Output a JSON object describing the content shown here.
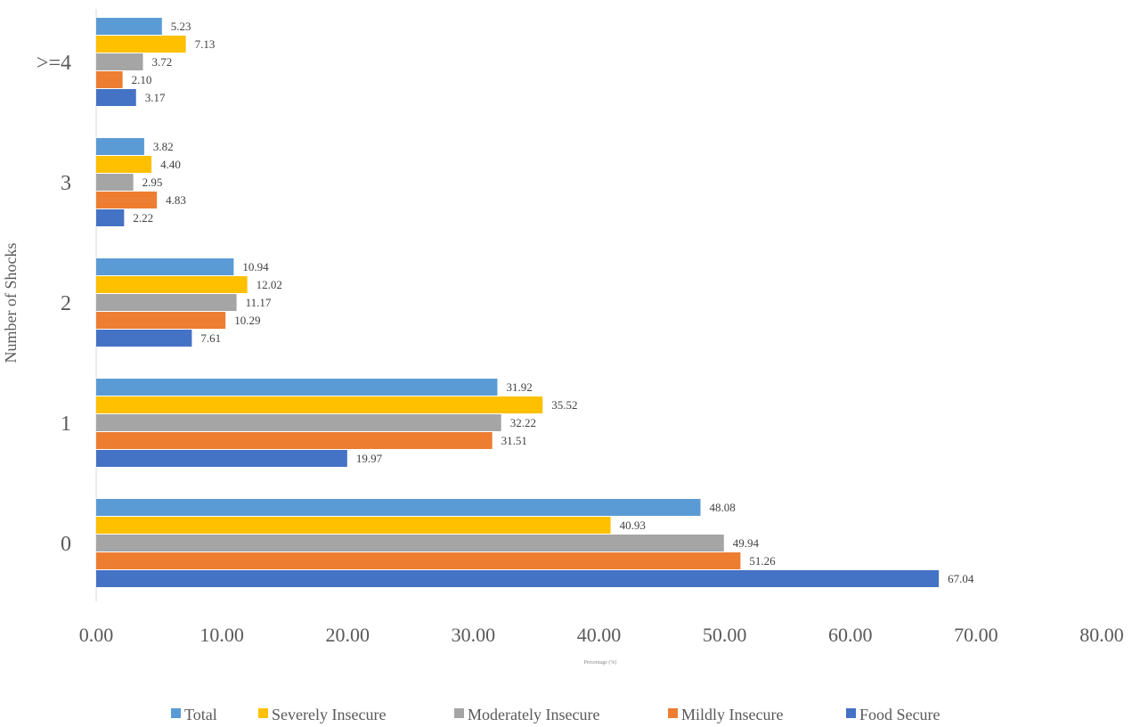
{
  "chart_data": {
    "type": "bar",
    "orientation": "horizontal",
    "title": "",
    "xlabel": "Percentage (%)",
    "ylabel": "Number of Shocks",
    "xlim": [
      0,
      80
    ],
    "xticks": [
      "0.00",
      "10.00",
      "20.00",
      "30.00",
      "40.00",
      "50.00",
      "60.00",
      "70.00",
      "80.00"
    ],
    "grid": false,
    "legend_position": "bottom",
    "categories": [
      "0",
      "1",
      "2",
      "3",
      ">=4"
    ],
    "series": [
      {
        "name": "Total",
        "color": "#5b9bd5",
        "values": [
          48.08,
          31.92,
          10.94,
          3.82,
          5.23
        ]
      },
      {
        "name": "Severely Insecure",
        "color": "#ffc000",
        "values": [
          40.93,
          35.52,
          12.02,
          4.4,
          7.13
        ]
      },
      {
        "name": "Moderately Insecure",
        "color": "#a5a5a5",
        "values": [
          49.94,
          32.22,
          11.17,
          2.95,
          3.72
        ]
      },
      {
        "name": "Mildly Insecure",
        "color": "#ed7d31",
        "values": [
          51.26,
          31.51,
          10.29,
          4.83,
          2.1
        ]
      },
      {
        "name": "Food Secure",
        "color": "#4472c4",
        "values": [
          67.04,
          19.97,
          7.61,
          2.22,
          3.17
        ]
      }
    ]
  }
}
